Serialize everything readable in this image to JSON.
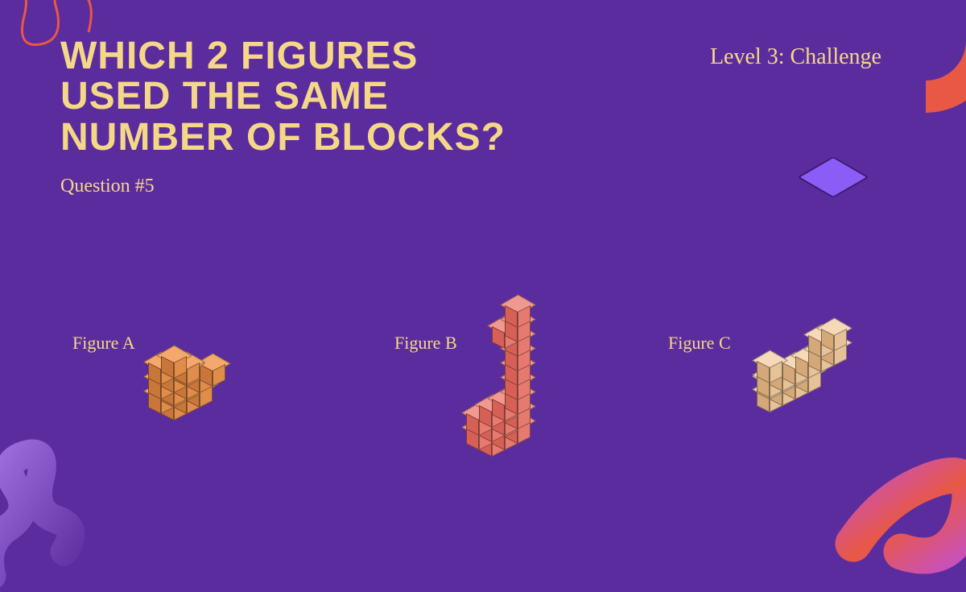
{
  "title_line1": "WHICH 2 FIGURES",
  "title_line2": "USED THE SAME",
  "title_line3": "NUMBER OF BLOCKS?",
  "question_num": "Question #5",
  "level": "Level 3: Challenge",
  "figures": {
    "a": {
      "label": "Figure A",
      "cube_color_top": "#f4a86e",
      "cube_color_left": "#c9763a",
      "cube_color_right": "#e08c4a"
    },
    "b": {
      "label": "Figure B",
      "cube_color_top": "#f2998f",
      "cube_color_left": "#d66055",
      "cube_color_right": "#e67a6e"
    },
    "c": {
      "label": "Figure C",
      "cube_color_top": "#f5d9b8",
      "cube_color_left": "#d4a878",
      "cube_color_right": "#e6c298"
    }
  },
  "colors": {
    "background": "#5b2c9e",
    "text": "#f5d887",
    "accent_red": "#e85845",
    "accent_purple": "#8b5cf6",
    "accent_magenta": "#c850c0"
  },
  "typography": {
    "title_fontsize": 48,
    "title_weight": 900,
    "label_fontsize": 22,
    "level_fontsize": 28,
    "question_fontsize": 24
  },
  "decorations": {
    "squiggle_top_left": {
      "color": "#e85845",
      "stroke_width": 3
    },
    "corner_top_right": {
      "color": "#e85845"
    },
    "spiral_bottom_left": {
      "color": "#8b5cf6"
    },
    "tube_bottom_right": {
      "colors": [
        "#c850c0",
        "#e85845"
      ]
    },
    "diamond_right": {
      "color": "#8b5cf6"
    }
  },
  "figure_a_cubes": [
    [
      0,
      0,
      0
    ],
    [
      1,
      0,
      0
    ],
    [
      2,
      0,
      0
    ],
    [
      0,
      0,
      1
    ],
    [
      1,
      0,
      1
    ],
    [
      2,
      0,
      1
    ],
    [
      0,
      1,
      0
    ],
    [
      1,
      1,
      0
    ],
    [
      0,
      1,
      1
    ],
    [
      1,
      1,
      1
    ],
    [
      2,
      1,
      0
    ],
    [
      3,
      1,
      0
    ],
    [
      2,
      1,
      1
    ],
    [
      1,
      2,
      0
    ],
    [
      1,
      2,
      1
    ],
    [
      0,
      2,
      1
    ]
  ],
  "figure_b_cubes": [
    [
      0,
      0,
      0
    ],
    [
      1,
      0,
      0
    ],
    [
      2,
      0,
      0
    ],
    [
      0,
      0,
      1
    ],
    [
      2,
      0,
      1
    ],
    [
      0,
      1,
      0
    ],
    [
      1,
      1,
      0
    ],
    [
      2,
      1,
      0
    ],
    [
      0,
      1,
      1
    ],
    [
      2,
      1,
      1
    ],
    [
      0,
      2,
      0
    ],
    [
      1,
      2,
      0
    ],
    [
      2,
      2,
      0
    ],
    [
      2,
      3,
      0
    ],
    [
      2,
      4,
      0
    ],
    [
      2,
      5,
      0
    ],
    [
      2,
      6,
      0
    ],
    [
      2,
      7,
      0
    ],
    [
      1,
      7,
      0
    ],
    [
      2,
      8,
      0
    ]
  ],
  "figure_c_cubes": [
    [
      0,
      0,
      0
    ],
    [
      1,
      0,
      0
    ],
    [
      2,
      0,
      0
    ],
    [
      3,
      0,
      0
    ],
    [
      1,
      0,
      1
    ],
    [
      2,
      0,
      1
    ],
    [
      3,
      0,
      1
    ],
    [
      0,
      1,
      0
    ],
    [
      1,
      1,
      0
    ],
    [
      2,
      1,
      0
    ],
    [
      3,
      1,
      0
    ],
    [
      4,
      1,
      0
    ],
    [
      5,
      1,
      0
    ],
    [
      4,
      2,
      0
    ],
    [
      5,
      2,
      0
    ],
    [
      0,
      2,
      0
    ]
  ]
}
